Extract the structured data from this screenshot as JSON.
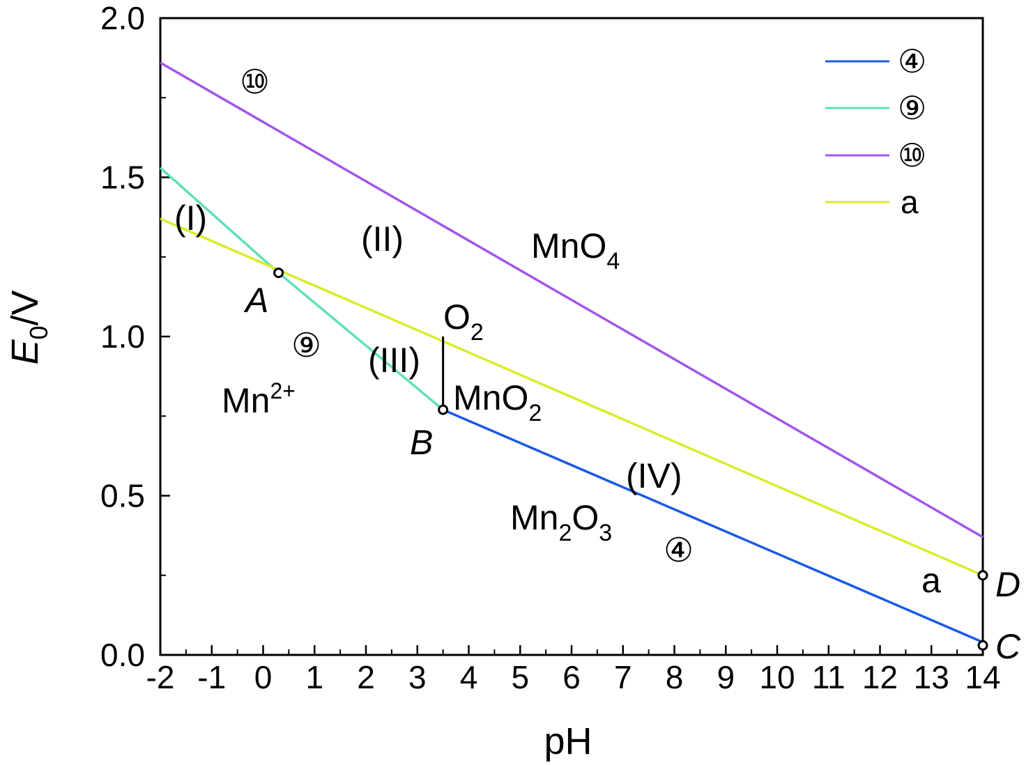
{
  "chart_data": {
    "type": "line",
    "xlabel": "pH",
    "ylabel": {
      "main": "E",
      "sub": "0",
      "suffix": "/V"
    },
    "xlim": [
      -2,
      14
    ],
    "ylim": [
      0,
      2.0
    ],
    "x_ticks": [
      -2,
      -1,
      0,
      1,
      2,
      3,
      4,
      5,
      6,
      7,
      8,
      9,
      10,
      11,
      12,
      13,
      14
    ],
    "x_tick_labels": [
      "-2",
      "-1",
      "0",
      "1",
      "2",
      "3",
      "4",
      "5",
      "6",
      "7",
      "8",
      "9",
      "10",
      "11",
      "12",
      "13",
      "14"
    ],
    "y_ticks": [
      0,
      0.5,
      1.0,
      1.5,
      2.0
    ],
    "y_tick_labels": [
      "0.0",
      "0.5",
      "1.0",
      "1.5",
      "2.0"
    ],
    "grid": false,
    "legend_position": "top-right",
    "series": [
      {
        "name": "④",
        "color": "#1a5ae6",
        "x": [
          3.5,
          14
        ],
        "y": [
          0.77,
          0.04
        ]
      },
      {
        "name": "⑨",
        "color": "#5ee0bb",
        "x": [
          -2,
          0.3,
          3.5
        ],
        "y": [
          1.53,
          1.2,
          0.77
        ]
      },
      {
        "name": "⑩",
        "color": "#a256e8",
        "x": [
          -2,
          14
        ],
        "y": [
          1.86,
          0.37
        ]
      },
      {
        "name": "a",
        "color": "#d9ec2a",
        "x": [
          -2,
          14
        ],
        "y": [
          1.37,
          0.25
        ]
      }
    ],
    "vertical_segment": {
      "x": 3.5,
      "y": [
        0.77,
        1.0
      ]
    },
    "points": [
      {
        "label": "A",
        "x": 0.3,
        "y": 1.2
      },
      {
        "label": "B",
        "x": 3.5,
        "y": 0.77
      },
      {
        "label": "C",
        "x": 14,
        "y": 0.03
      },
      {
        "label": "D",
        "x": 14,
        "y": 0.25
      }
    ],
    "annotations": {
      "region_1": "(I)",
      "region_2": "(II)",
      "region_3": "(III)",
      "region_4": "(IV)",
      "mno4": {
        "base": "MnO",
        "sub": "4"
      },
      "o2": {
        "base": "O",
        "sub": "2"
      },
      "mno2": {
        "base": "MnO",
        "sub": "2"
      },
      "mn2": {
        "base": "Mn",
        "sup": "2+"
      },
      "mn2o3": {
        "a": "Mn",
        "sub1": "2",
        "b": "O",
        "sub2": "3"
      },
      "line_10": "⑩",
      "line_9": "⑨",
      "line_4": "④",
      "line_a": "a",
      "A": "A",
      "B": "B",
      "C": "C",
      "D": "D"
    }
  }
}
